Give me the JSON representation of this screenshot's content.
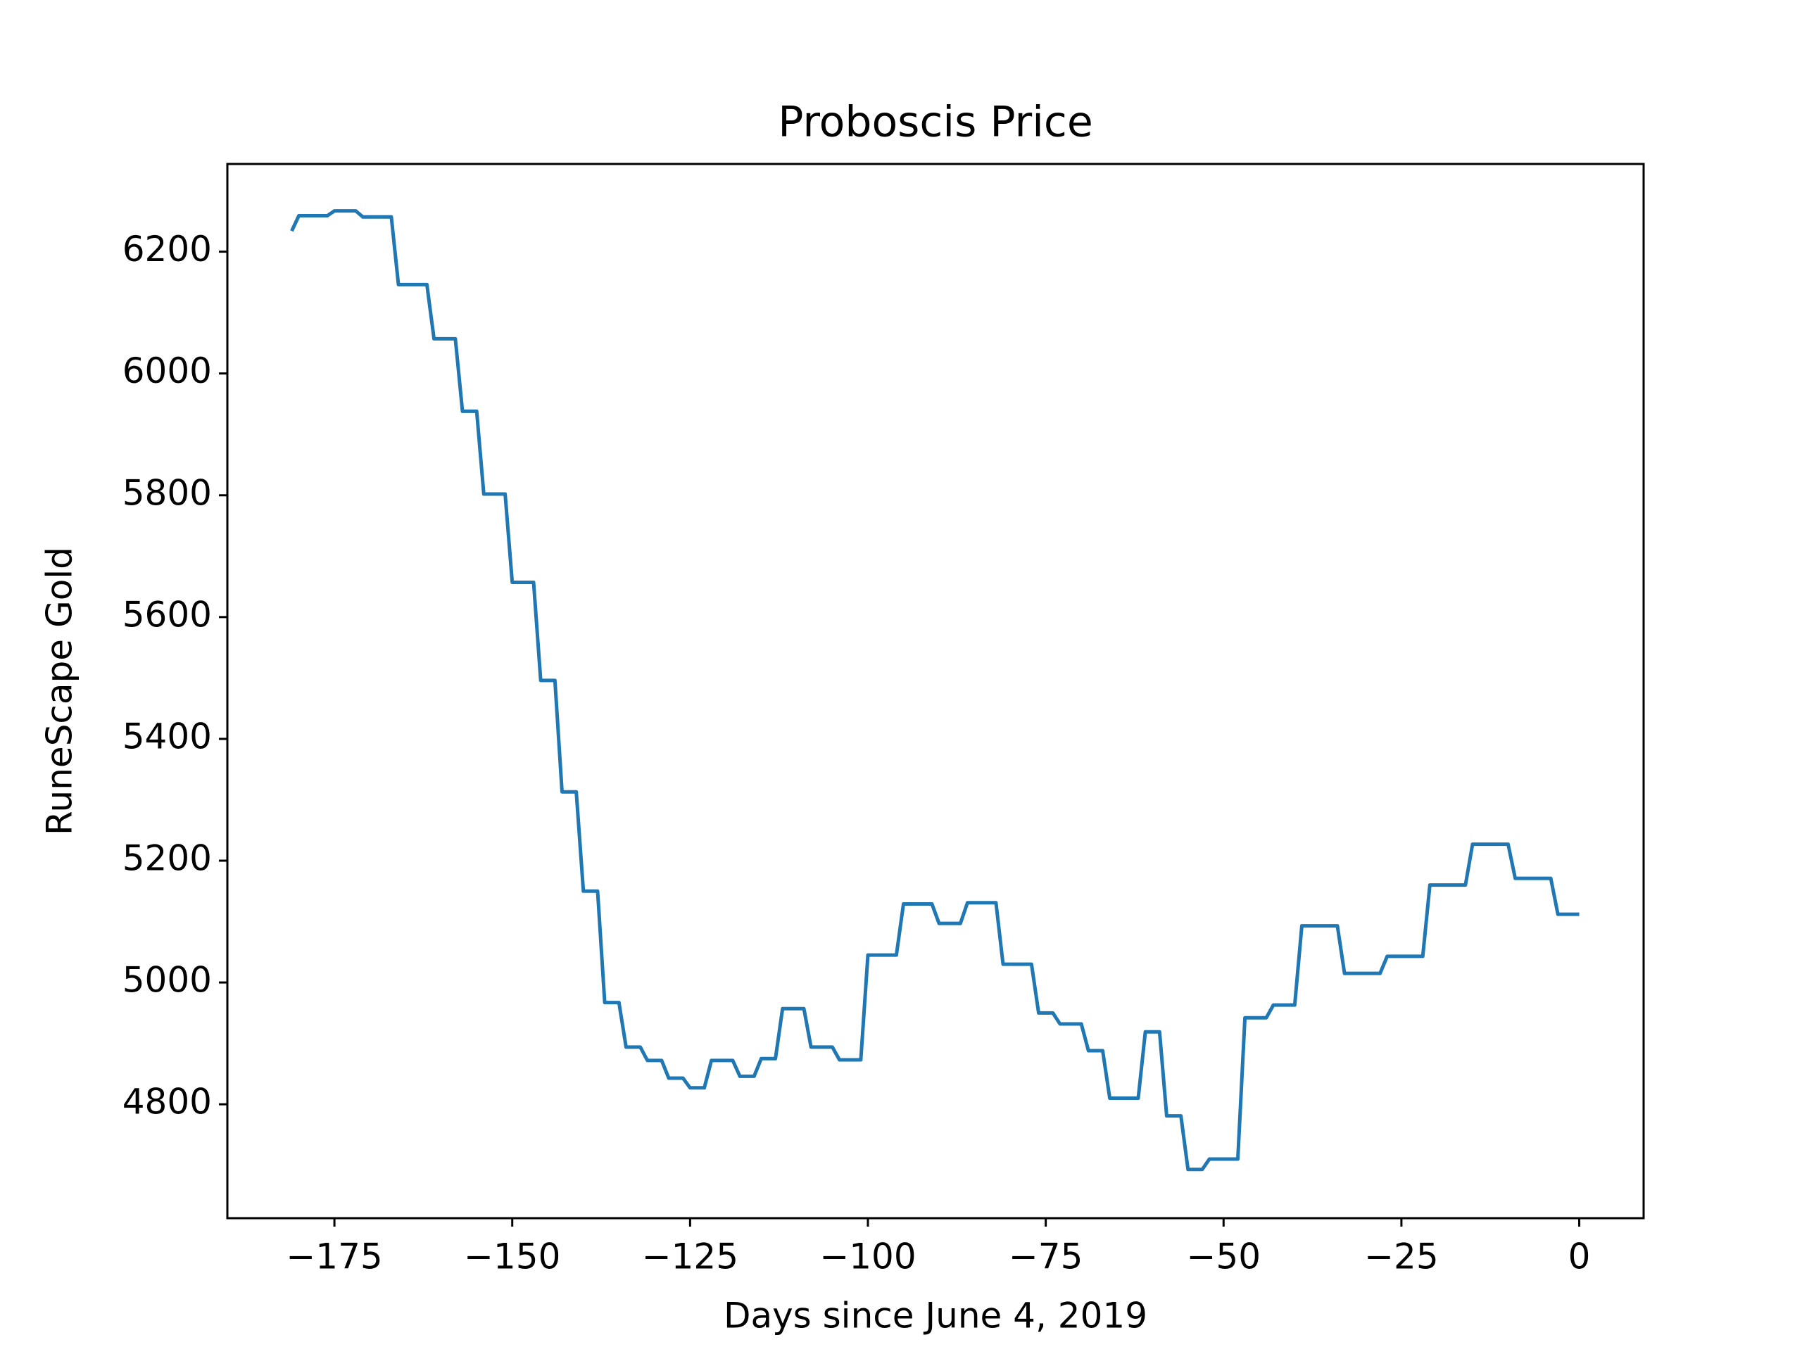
{
  "chart_data": {
    "type": "line",
    "title": "Proboscis Price",
    "x_label": "Days since June 4, 2019",
    "y_label": "RuneScape Gold",
    "color": "#1f77b4",
    "x": [
      -181,
      -180,
      -176,
      -175,
      -172,
      -171,
      -167,
      -166,
      -162,
      -161,
      -158,
      -157,
      -155,
      -154,
      -151,
      -150,
      -147,
      -146,
      -144,
      -143,
      -141,
      -140,
      -138,
      -137,
      -135,
      -134,
      -132,
      -131,
      -129,
      -128,
      -126,
      -125,
      -123,
      -122,
      -119,
      -118,
      -116,
      -115,
      -113,
      -112,
      -109,
      -108,
      -105,
      -104,
      -101,
      -100,
      -96,
      -95,
      -91,
      -90,
      -87,
      -86,
      -82,
      -81,
      -77,
      -76,
      -74,
      -73,
      -70,
      -69,
      -67,
      -66,
      -62,
      -61,
      -59,
      -58,
      -56,
      -55,
      -53,
      -52,
      -48,
      -47,
      -44,
      -43,
      -40,
      -39,
      -34,
      -33,
      -28,
      -27,
      -22,
      -21,
      -16,
      -15,
      -10,
      -9,
      -4,
      -3,
      0
    ],
    "values": [
      6234,
      6259,
      6259,
      6267,
      6267,
      6257,
      6257,
      6146,
      6146,
      6057,
      6057,
      5938,
      5938,
      5802,
      5802,
      5657,
      5657,
      5496,
      5496,
      5313,
      5313,
      5150,
      5150,
      4967,
      4967,
      4894,
      4894,
      4872,
      4872,
      4843,
      4843,
      4827,
      4827,
      4872,
      4872,
      4846,
      4846,
      4875,
      4875,
      4957,
      4957,
      4894,
      4894,
      4873,
      4873,
      5045,
      5045,
      5129,
      5129,
      5097,
      5097,
      5131,
      5131,
      5030,
      5030,
      4950,
      4950,
      4932,
      4932,
      4888,
      4888,
      4810,
      4810,
      4919,
      4919,
      4781,
      4781,
      4693,
      4693,
      4710,
      4710,
      4942,
      4942,
      4963,
      4963,
      5093,
      5093,
      5015,
      5015,
      5043,
      5043,
      5160,
      5160,
      5227,
      5227,
      5171,
      5171,
      5112,
      5112
    ],
    "xlim": [
      -190.05,
      9.05
    ],
    "ylim": [
      4613,
      6344
    ],
    "xticks": [
      {
        "value": -175,
        "label": "−175"
      },
      {
        "value": -150,
        "label": "−150"
      },
      {
        "value": -125,
        "label": "−125"
      },
      {
        "value": -100,
        "label": "−100"
      },
      {
        "value": -75,
        "label": "−75"
      },
      {
        "value": -50,
        "label": "−50"
      },
      {
        "value": -25,
        "label": "−25"
      },
      0
    ],
    "yticks": [
      4800,
      5000,
      5200,
      5400,
      5600,
      5800,
      6000,
      6200
    ]
  }
}
